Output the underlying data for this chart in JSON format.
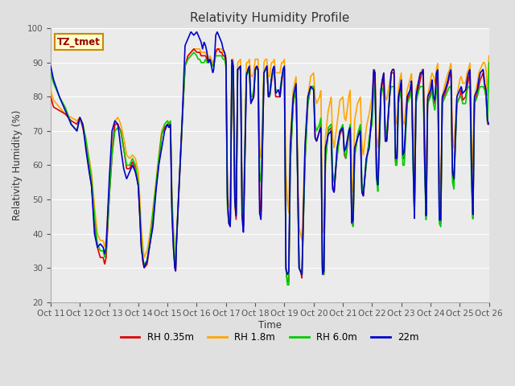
{
  "title": "Relativity Humidity Profile",
  "xlabel": "Time",
  "ylabel": "Relativity Humidity (%)",
  "ylim": [
    20,
    100
  ],
  "yticks": [
    20,
    30,
    40,
    50,
    60,
    70,
    80,
    90,
    100
  ],
  "x_labels": [
    "Oct 11",
    "Oct 12",
    "Oct 13",
    "Oct 14",
    "Oct 15",
    "Oct 16",
    "Oct 17",
    "Oct 18",
    "Oct 19",
    "Oct 20",
    "Oct 21",
    "Oct 22",
    "Oct 23",
    "Oct 24",
    "Oct 25",
    "Oct 26"
  ],
  "bg_color": "#e0e0e0",
  "plot_bg": "#ebebeb",
  "legend_labels": [
    "RH 0.35m",
    "RH 1.8m",
    "RH 6.0m",
    "22m"
  ],
  "legend_colors": [
    "#dd0000",
    "#ffa500",
    "#00cc00",
    "#0000cc"
  ],
  "annotation_text": "TZ_tmet",
  "annotation_color": "#990000",
  "annotation_bg": "#ffffcc",
  "annotation_border": "#cc8800",
  "figsize": [
    6.4,
    4.8
  ],
  "dpi": 100
}
